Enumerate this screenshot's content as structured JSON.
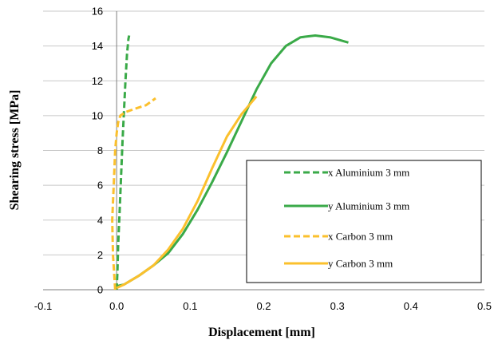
{
  "chart_data": {
    "type": "line",
    "title": "",
    "xlabel": "Displacement [mm]",
    "ylabel": "Shearing  stress  [MPa]",
    "xlim": [
      -0.1,
      0.5
    ],
    "ylim": [
      0,
      16
    ],
    "xticks": [
      -0.1,
      0.0,
      0.1,
      0.2,
      0.3,
      0.4,
      0.5
    ],
    "xtick_labels": [
      "-0.1",
      "0.0",
      "0.1",
      "0.2",
      "0.3",
      "0.4",
      "0.5"
    ],
    "yticks": [
      0,
      2,
      4,
      6,
      8,
      10,
      12,
      14,
      16
    ],
    "ytick_labels": [
      "0",
      "2",
      "4",
      "6",
      "8",
      "10",
      "12",
      "14",
      "16"
    ],
    "grid": "horizontal",
    "legend_position": "bottom-right",
    "series": [
      {
        "name": "x Aluminium 3 mm",
        "color": "#3aaa48",
        "dash": "dashed",
        "x": [
          0.0,
          0.001,
          0.002,
          0.004,
          0.006,
          0.008,
          0.01,
          0.012,
          0.014,
          0.016,
          0.017
        ],
        "y": [
          0.0,
          1.0,
          2.5,
          4.5,
          6.5,
          8.5,
          10.3,
          12.0,
          13.5,
          14.4,
          14.6
        ]
      },
      {
        "name": "y Aluminium 3 mm",
        "color": "#3aaa48",
        "dash": "solid",
        "x": [
          0.0,
          0.01,
          0.03,
          0.05,
          0.07,
          0.09,
          0.11,
          0.13,
          0.15,
          0.17,
          0.19,
          0.21,
          0.23,
          0.25,
          0.27,
          0.29,
          0.315
        ],
        "y": [
          0.2,
          0.3,
          0.8,
          1.4,
          2.1,
          3.2,
          4.6,
          6.2,
          7.9,
          9.7,
          11.5,
          13.0,
          14.0,
          14.5,
          14.6,
          14.5,
          14.2
        ]
      },
      {
        "name": "x  Carbon 3 mm",
        "color": "#fbc02d",
        "dash": "dashed",
        "x": [
          -0.002,
          -0.005,
          -0.006,
          -0.004,
          -0.002,
          0.0,
          0.002,
          0.005,
          0.012,
          0.025,
          0.04,
          0.053
        ],
        "y": [
          0.0,
          2.0,
          4.0,
          6.0,
          8.0,
          9.0,
          9.6,
          10.0,
          10.2,
          10.4,
          10.6,
          11.0
        ]
      },
      {
        "name": "y  Carbon 3 mm",
        "color": "#fbc02d",
        "dash": "solid",
        "x": [
          0.0,
          0.01,
          0.03,
          0.05,
          0.07,
          0.09,
          0.11,
          0.13,
          0.15,
          0.17,
          0.18,
          0.19
        ],
        "y": [
          0.1,
          0.3,
          0.8,
          1.4,
          2.3,
          3.5,
          5.1,
          7.0,
          8.8,
          10.1,
          10.6,
          11.1
        ]
      }
    ]
  }
}
